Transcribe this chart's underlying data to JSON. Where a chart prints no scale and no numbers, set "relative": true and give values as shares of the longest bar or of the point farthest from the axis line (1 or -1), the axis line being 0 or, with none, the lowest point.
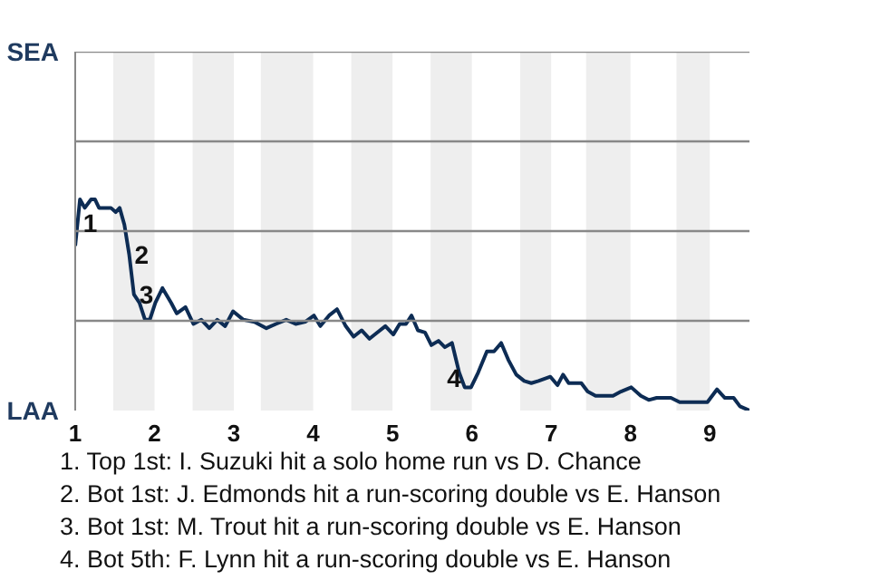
{
  "chart_data": {
    "type": "line",
    "x": [
      1.0,
      1.06,
      1.12,
      1.2,
      1.25,
      1.3,
      1.45,
      1.51,
      1.56,
      1.62,
      1.68,
      1.74,
      1.81,
      1.88,
      1.94,
      2.01,
      2.1,
      2.21,
      2.28,
      2.39,
      2.49,
      2.59,
      2.69,
      2.79,
      2.89,
      2.99,
      3.12,
      3.26,
      3.41,
      3.53,
      3.66,
      3.78,
      3.9,
      4.01,
      4.09,
      4.2,
      4.3,
      4.41,
      4.51,
      4.61,
      4.71,
      4.81,
      4.91,
      5.01,
      5.09,
      5.17,
      5.24,
      5.32,
      5.41,
      5.49,
      5.58,
      5.66,
      5.75,
      5.84,
      5.91,
      5.99,
      6.08,
      6.19,
      6.28,
      6.37,
      6.46,
      6.56,
      6.66,
      6.75,
      6.84,
      6.99,
      7.08,
      7.15,
      7.22,
      7.38,
      7.46,
      7.56,
      7.78,
      7.88,
      8.01,
      8.13,
      8.23,
      8.33,
      8.51,
      8.62,
      8.8,
      8.88,
      8.97,
      9.09,
      9.19,
      9.3,
      9.38,
      9.5
    ],
    "series": [
      {
        "color": "#0d2c54",
        "values": [
          0.78,
          1,
          0.96,
          1,
          1,
          0.96,
          0.96,
          0.94,
          0.96,
          0.88,
          0.74,
          0.55,
          0.51,
          0.43,
          0.43,
          0.51,
          0.58,
          0.51,
          0.46,
          0.49,
          0.41,
          0.43,
          0.39,
          0.43,
          0.4,
          0.47,
          0.43,
          0.42,
          0.39,
          0.41,
          0.43,
          0.41,
          0.42,
          0.45,
          0.4,
          0.45,
          0.48,
          0.4,
          0.35,
          0.38,
          0.34,
          0.37,
          0.4,
          0.36,
          0.41,
          0.41,
          0.45,
          0.38,
          0.37,
          0.31,
          0.33,
          0.3,
          0.32,
          0.18,
          0.11,
          0.11,
          0.18,
          0.28,
          0.28,
          0.32,
          0.24,
          0.17,
          0.14,
          0.13,
          0.14,
          0.16,
          0.12,
          0.17,
          0.13,
          0.13,
          0.09,
          0.07,
          0.07,
          0.09,
          0.11,
          0.07,
          0.05,
          0.06,
          0.06,
          0.04,
          0.04,
          0.04,
          0.04,
          0.1,
          0.06,
          0.06,
          0.02,
          0
        ]
      }
    ],
    "relative": true,
    "xlim": [
      1,
      9.5
    ],
    "xticks": [
      1,
      2,
      3,
      4,
      5,
      6,
      7,
      8,
      9
    ],
    "ref_lines": [
      {
        "axis": "y",
        "value": 0.425,
        "color": "#888888"
      },
      {
        "axis": "y",
        "value": 0.85,
        "color": "#888888"
      },
      {
        "axis": "y",
        "value": 1.275,
        "color": "#888888"
      },
      {
        "axis": "y",
        "value": 1.7,
        "color": "#888888"
      }
    ],
    "line_style": "solid",
    "bands": [
      {
        "axis": "x",
        "from": 1.48,
        "to": 2,
        "color": "#eeeeee"
      },
      {
        "axis": "x",
        "from": 2.48,
        "to": 3,
        "color": "#eeeeee"
      },
      {
        "axis": "x",
        "from": 3.34,
        "to": 4,
        "color": "#eeeeee"
      },
      {
        "axis": "x",
        "from": 4.48,
        "to": 5,
        "color": "#eeeeee"
      },
      {
        "axis": "x",
        "from": 5.48,
        "to": 6,
        "color": "#eeeeee"
      },
      {
        "axis": "x",
        "from": 6.61,
        "to": 7,
        "color": "#eeeeee"
      },
      {
        "axis": "x",
        "from": 7.44,
        "to": 8,
        "color": "#eeeeee"
      },
      {
        "axis": "x",
        "from": 8.58,
        "to": 9,
        "color": "#eeeeee"
      }
    ],
    "annotations": [
      "SEA",
      "LAA",
      {
        "text": "1",
        "x": 1.03,
        "y": 0.89
      },
      {
        "text": "2",
        "x": 1.68,
        "y": 0.74
      },
      {
        "text": "3",
        "x": 1.74,
        "y": 0.55
      },
      {
        "text": "4",
        "x": 5.91,
        "y": 0.11
      },
      "1. Top 1st: I. Suzuki hit a solo home run vs D. Chance",
      "2. Bot 1st: J. Edmonds hit a run-scoring double vs E. Hanson",
      "3. Bot 1st: M. Trout hit a run-scoring double vs E. Hanson",
      "4. Bot 5th: F. Lynn hit a run-scoring double vs E. Hanson"
    ]
  }
}
